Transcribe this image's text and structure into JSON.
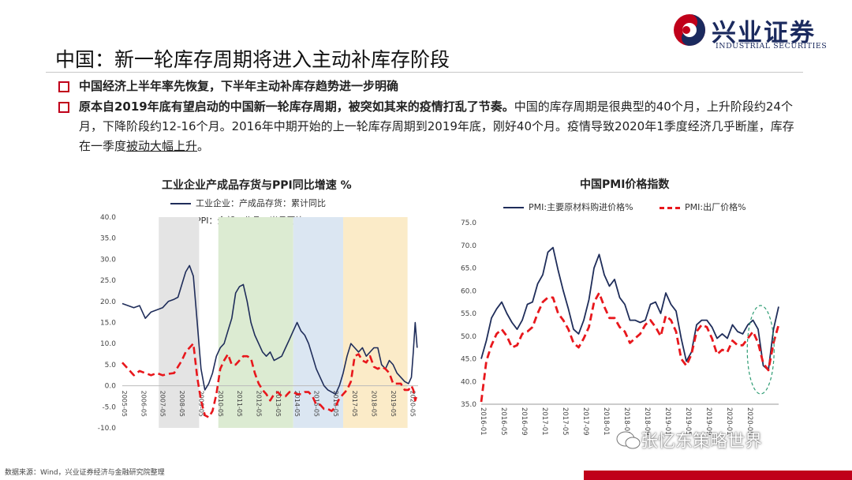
{
  "header": {
    "logo_cn": "兴业证券",
    "logo_en": "INDUSTRIAL SECURITIES",
    "title": "中国：新一轮库存周期将进入主动补库存阶段"
  },
  "bullets": {
    "b1": "中国经济上半年率先恢复，下半年主动补库存趋势进一步明确",
    "b2_lead": "原本自2019年底有望启动的中国新一轮库存周期，被突如其来的疫情打乱了节奏。",
    "b2_text": "中国的库存周期是很典型的40个月，上升阶段约24个月，下降阶段约12-16个月。2016年中期开始的上一轮库存周期到2019年底，刚好40个月。疫情导致2020年1季度经济几乎断崖，库存在一季度",
    "b2_underline": "被动大幅上升",
    "b2_end": "。"
  },
  "footer": {
    "source": "数据来源：Wind，兴业证券经济与金融研究院整理",
    "watermark": "张忆东策略世界"
  },
  "colors": {
    "accent": "#c0001a",
    "navy": "#1f2d5a",
    "red": "#e8171c"
  },
  "chart_data": [
    {
      "type": "line",
      "title": "工业企业产成品存货与PPI同比增速 %",
      "ylim": [
        -10,
        40
      ],
      "yticks": [
        "40.0",
        "35.0",
        "30.0",
        "25.0",
        "20.0",
        "15.0",
        "10.0",
        "5.0",
        "0.0",
        "-5.0",
        "-10.0"
      ],
      "xticks": [
        "2005-05",
        "2006-05",
        "2007-05",
        "2008-05",
        "2009-05",
        "2010-05",
        "2011-05",
        "2012-05",
        "2013-05",
        "2014-05",
        "2015-05",
        "2016-05",
        "2017-05",
        "2018-05",
        "2019-05",
        "2020-05"
      ],
      "shading": [
        {
          "from": 2006.9,
          "to": 2009.0,
          "color": "#e4e4e4"
        },
        {
          "from": 2010.0,
          "to": 2013.9,
          "color": "#dcebd2"
        },
        {
          "from": 2013.9,
          "to": 2016.5,
          "color": "#dbe6f2"
        },
        {
          "from": 2016.5,
          "to": 2019.85,
          "color": "#fbebc8"
        }
      ],
      "series": [
        {
          "name": "工业企业：产成品存货：累计同比",
          "style": "solid",
          "color": "#1f2d5a",
          "x": [
            2005.0,
            2005.3,
            2005.6,
            2005.9,
            2006.2,
            2006.5,
            2006.8,
            2007.1,
            2007.4,
            2007.7,
            2007.9,
            2008.1,
            2008.3,
            2008.5,
            2008.7,
            2008.9,
            2009.1,
            2009.3,
            2009.5,
            2009.7,
            2009.9,
            2010.1,
            2010.3,
            2010.5,
            2010.7,
            2010.9,
            2011.1,
            2011.3,
            2011.5,
            2011.7,
            2011.9,
            2012.1,
            2012.3,
            2012.5,
            2012.7,
            2012.9,
            2013.1,
            2013.3,
            2013.5,
            2013.7,
            2013.9,
            2014.1,
            2014.3,
            2014.5,
            2014.7,
            2014.9,
            2015.1,
            2015.3,
            2015.5,
            2015.7,
            2015.9,
            2016.1,
            2016.3,
            2016.5,
            2016.7,
            2016.9,
            2017.1,
            2017.3,
            2017.5,
            2017.7,
            2017.9,
            2018.1,
            2018.3,
            2018.5,
            2018.7,
            2018.9,
            2019.1,
            2019.3,
            2019.5,
            2019.7,
            2019.9,
            2020.05,
            2020.15,
            2020.25,
            2020.35
          ],
          "y": [
            19.5,
            19,
            18.5,
            19,
            16,
            17.5,
            18,
            18.5,
            20,
            20.5,
            21,
            24,
            27,
            28.5,
            26,
            15,
            4,
            -1,
            0.5,
            3,
            7,
            9,
            10,
            13,
            16,
            22,
            23.5,
            24,
            20,
            15,
            12,
            10,
            8,
            7,
            8,
            6,
            6.5,
            7,
            9,
            11,
            13,
            15,
            13,
            12,
            10,
            7,
            4,
            2,
            0,
            -1,
            -1.5,
            -2,
            0,
            3,
            7,
            10,
            9,
            8,
            9,
            7,
            8,
            9,
            9,
            5,
            4,
            6,
            5,
            3,
            2,
            1,
            0.5,
            2,
            8,
            15,
            9
          ]
        },
        {
          "name": "PPI：全部工业品：当月同比",
          "style": "dash",
          "color": "#e8171c",
          "x": [
            2005.0,
            2005.3,
            2005.6,
            2005.9,
            2006.2,
            2006.5,
            2006.8,
            2007.1,
            2007.4,
            2007.7,
            2007.9,
            2008.1,
            2008.3,
            2008.5,
            2008.7,
            2008.9,
            2009.1,
            2009.3,
            2009.5,
            2009.7,
            2009.9,
            2010.1,
            2010.3,
            2010.5,
            2010.7,
            2010.9,
            2011.1,
            2011.3,
            2011.5,
            2011.7,
            2011.9,
            2012.1,
            2012.3,
            2012.5,
            2012.7,
            2012.9,
            2013.1,
            2013.3,
            2013.5,
            2013.7,
            2013.9,
            2014.1,
            2014.3,
            2014.5,
            2014.7,
            2014.9,
            2015.1,
            2015.3,
            2015.5,
            2015.7,
            2015.9,
            2016.1,
            2016.3,
            2016.5,
            2016.7,
            2016.9,
            2017.1,
            2017.3,
            2017.5,
            2017.7,
            2017.9,
            2018.1,
            2018.3,
            2018.5,
            2018.7,
            2018.9,
            2019.1,
            2019.3,
            2019.5,
            2019.7,
            2019.9,
            2020.05,
            2020.15,
            2020.25,
            2020.35
          ],
          "y": [
            5.5,
            4,
            2.5,
            3.5,
            3,
            2.5,
            3,
            2.5,
            2.8,
            3,
            4.5,
            6,
            8,
            9,
            10,
            2,
            -3.5,
            -7,
            -7.5,
            -6,
            -2,
            4,
            6,
            7.5,
            5,
            5,
            6,
            7,
            7,
            6.5,
            3,
            0.5,
            -1,
            -2,
            -3.5,
            -2,
            -1.5,
            -2.5,
            -2.5,
            -1.5,
            -1.5,
            -2,
            -2,
            -1.5,
            -1.5,
            -2.5,
            -4.5,
            -4.5,
            -5.5,
            -5.5,
            -6,
            -5,
            -3,
            -2,
            -1,
            1,
            7,
            7.5,
            6,
            5.5,
            7,
            4.5,
            4,
            4.5,
            4,
            3,
            0.5,
            0.5,
            0.5,
            -1,
            -1,
            0,
            -1,
            -3.5,
            -2
          ]
        }
      ]
    },
    {
      "type": "line",
      "title": "中国PMI价格指数",
      "ylim": [
        35,
        75
      ],
      "yticks": [
        "75.0",
        "70.0",
        "65.0",
        "60.0",
        "55.0",
        "50.0",
        "45.0",
        "40.0",
        "35.0"
      ],
      "xticks": [
        "2016-01",
        "2016-05",
        "2016-09",
        "2017-01",
        "2017-05",
        "2017-09",
        "2018-01",
        "2018-05",
        "2018-09",
        "2019-01",
        "2019-05",
        "2019-09",
        "2020-01",
        "2020-05"
      ],
      "series": [
        {
          "name": "PMI:主要原材料购进价格%",
          "style": "solid",
          "color": "#1f2d5a",
          "values": [
            45.0,
            49.0,
            54.0,
            56.0,
            57.5,
            55.0,
            53.0,
            51.5,
            53.5,
            57.0,
            57.5,
            61.5,
            63.5,
            68.5,
            69.5,
            64.5,
            60.0,
            56.0,
            51.5,
            50.5,
            53.5,
            58.0,
            65.0,
            68.0,
            63.5,
            61.0,
            62.5,
            58.5,
            57.0,
            53.5,
            53.5,
            53.0,
            53.5,
            57.0,
            57.5,
            55.0,
            59.5,
            57.0,
            55.5,
            49.5,
            44.5,
            46.5,
            52.5,
            53.5,
            53.5,
            52.0,
            49.5,
            50.5,
            49.5,
            52.5,
            51.0,
            50.5,
            52.5,
            53.5,
            51.5,
            43.5,
            42.5,
            51.5,
            56.5
          ]
        },
        {
          "name": "PMI:出厂价格%",
          "style": "dash",
          "color": "#e8171c",
          "values": [
            35.5,
            44.5,
            48.0,
            50.5,
            51.5,
            50.0,
            47.5,
            48.0,
            50.5,
            51.0,
            52.0,
            55.0,
            57.5,
            58.5,
            58.5,
            55.0,
            53.5,
            51.5,
            48.5,
            47.5,
            49.5,
            52.0,
            57.5,
            59.5,
            56.5,
            54.0,
            54.0,
            52.0,
            51.0,
            48.5,
            49.5,
            50.5,
            52.5,
            53.5,
            52.0,
            50.0,
            54.5,
            53.5,
            51.0,
            45.0,
            43.5,
            46.0,
            51.0,
            52.5,
            52.0,
            49.5,
            46.0,
            47.0,
            46.5,
            49.0,
            48.0,
            48.0,
            49.5,
            51.0,
            48.5,
            44.0,
            42.5,
            48.5,
            52.5
          ]
        }
      ]
    }
  ]
}
